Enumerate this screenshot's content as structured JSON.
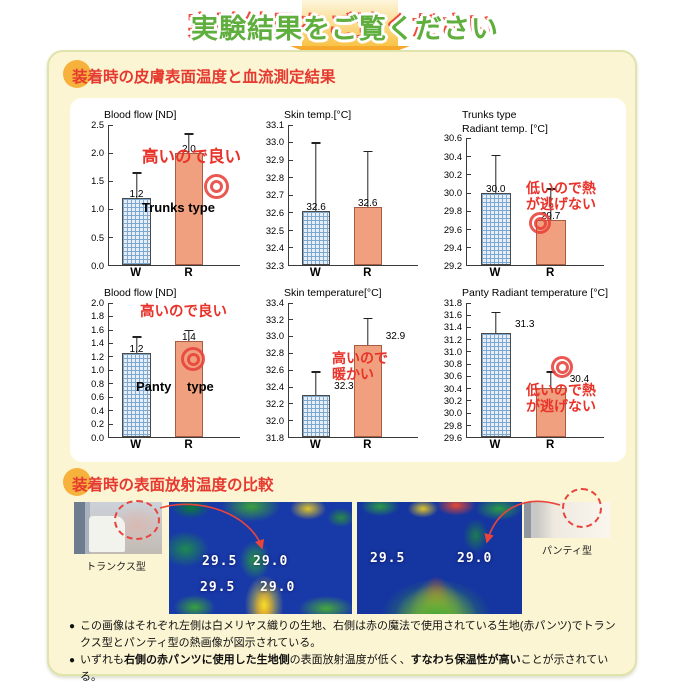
{
  "page": {
    "title": "実験結果をご覧ください"
  },
  "sections": {
    "charts": {
      "header": "装着時の皮膚表面温度と血流測定結果"
    },
    "thermal": {
      "header": "装着時の表面放射温度の比較"
    }
  },
  "colors": {
    "title_green": "#5fae3e",
    "header_red": "#e6392f",
    "accent_orange": "#f6b23c",
    "panel_yellow": "#fbf5d3",
    "bar_white_fabric": "#e6eff8",
    "bar_red_pants": "#f1a07f",
    "annotation_red": "#e8332a",
    "mark_red": "#e8423a"
  },
  "chart_data": [
    {
      "type": "bar",
      "title_lines": [
        "Blood flow [ND]"
      ],
      "categories": [
        "W",
        "R"
      ],
      "values": [
        1.2,
        2.0
      ],
      "value_labels": [
        "1.2",
        "2.0"
      ],
      "errors_top": [
        1.65,
        2.35
      ],
      "ylim": [
        0.0,
        2.5
      ],
      "ytick_step": 0.5,
      "tick_decimals": 1,
      "annotation_lines": [
        "高いので良い"
      ],
      "type_label": "Trunks type",
      "has_mark": true
    },
    {
      "type": "bar",
      "title_lines": [
        "Skin temp.[°C]"
      ],
      "categories": [
        "W",
        "R"
      ],
      "values": [
        32.6,
        32.6
      ],
      "bar_values": [
        32.61,
        32.63
      ],
      "value_labels": [
        "32.6",
        "32.6"
      ],
      "errors_top": [
        33.0,
        32.95
      ],
      "ylim": [
        32.3,
        33.1
      ],
      "ytick_step": 0.1,
      "tick_decimals": 1
    },
    {
      "type": "bar",
      "title_lines": [
        "Trunks type",
        "Radiant temp. [°C]"
      ],
      "categories": [
        "W",
        "R"
      ],
      "values": [
        30.0,
        29.7
      ],
      "value_labels": [
        "30.0",
        "29.7"
      ],
      "errors_top": [
        30.42,
        30.05
      ],
      "ylim": [
        29.2,
        30.6
      ],
      "ytick_step": 0.2,
      "tick_decimals": 1,
      "annotation_lines": [
        "低いので熱",
        "が逃げない"
      ],
      "has_mark": true
    },
    {
      "type": "bar",
      "title_lines": [
        "Blood flow [ND]"
      ],
      "categories": [
        "W",
        "R"
      ],
      "values": [
        1.2,
        1.4
      ],
      "bar_values": [
        1.25,
        1.43
      ],
      "value_labels": [
        "1.2",
        "1.4"
      ],
      "errors_top": [
        1.5,
        1.6
      ],
      "ylim": [
        0.0,
        2.0
      ],
      "ytick_step": 0.2,
      "tick_decimals": 1,
      "annotation_lines": [
        "高いので良い"
      ],
      "type_label": "Panty type",
      "has_mark": true
    },
    {
      "type": "bar",
      "title_lines": [
        "Skin temperature[°C]"
      ],
      "categories": [
        "W",
        "R"
      ],
      "values": [
        32.3,
        32.9
      ],
      "value_labels": [
        "32.3",
        "32.9"
      ],
      "errors_top": [
        32.58,
        33.22
      ],
      "ylim": [
        31.8,
        33.4
      ],
      "ytick_step": 0.2,
      "tick_decimals": 1,
      "annotation_lines": [
        "高いので",
        "暖かい"
      ],
      "labels_right": true
    },
    {
      "type": "bar",
      "title_lines": [
        "Panty Radiant temperature [°C]"
      ],
      "categories": [
        "W",
        "R"
      ],
      "values": [
        31.3,
        30.4
      ],
      "value_labels": [
        "31.3",
        "30.4"
      ],
      "errors_top": [
        31.65,
        30.68
      ],
      "ylim": [
        29.6,
        31.8
      ],
      "ytick_step": 0.2,
      "tick_decimals": 1,
      "annotation_lines": [
        "低いので熱",
        "が逃げない"
      ],
      "has_mark": true,
      "labels_right": true
    }
  ],
  "thermal_row": {
    "photo1_label": "トランクス型",
    "photo2_label": "パンティ型",
    "thermal1_temps": [
      "29.5",
      "29.0",
      "29.5",
      "29.0"
    ],
    "thermal2_temps": [
      "29.5",
      "29.0"
    ]
  },
  "bullets": [
    {
      "marker": "●",
      "segments": [
        {
          "text": "この画像はそれぞれ左側は白メリヤス織りの生地、右側は赤の魔法で使用されている生地(赤パンツ)でトランクス型とパンティ型の熱画像が図示されている。",
          "bold": false
        }
      ]
    },
    {
      "marker": "●",
      "segments": [
        {
          "text": "いずれも",
          "bold": false
        },
        {
          "text": "右側の赤パンツに使用した生地側",
          "bold": true
        },
        {
          "text": "の表面放射温度が低く、",
          "bold": false
        },
        {
          "text": "すなわち保温性が高い",
          "bold": true
        },
        {
          "text": "ことが示されている。",
          "bold": false
        }
      ]
    }
  ]
}
